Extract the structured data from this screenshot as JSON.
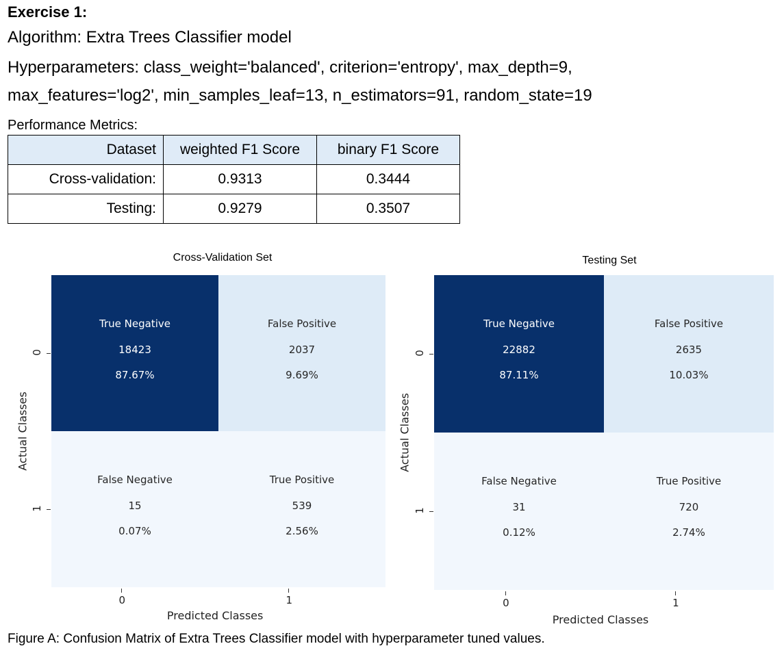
{
  "exercise_title": "Exercise 1:",
  "algorithm": "Algorithm: Extra Trees Classifier model",
  "hyperparameters_line1": "Hyperparameters: class_weight='balanced', criterion='entropy', max_depth=9,",
  "hyperparameters_line2": "max_features='log2', min_samples_leaf=13, n_estimators=91, random_state=19",
  "performance_label": "Performance Metrics:",
  "metrics_table": {
    "headers": [
      "Dataset",
      "weighted F1 Score",
      "binary F1 Score"
    ],
    "rows": [
      [
        "Cross-validation:",
        "0.9313",
        "0.3444"
      ],
      [
        "Testing:",
        "0.9279",
        "0.3507"
      ]
    ]
  },
  "colors": {
    "dark_cell": "#08306b",
    "light_cell": "#deebf7",
    "lightest_cell": "#f2f7fd",
    "table_header": "#dfebf7"
  },
  "chart_data": [
    {
      "type": "heatmap",
      "title": "Cross-Validation Set",
      "xlabel": "Predicted Classes",
      "ylabel": "Actual Classes",
      "x_tick_labels": [
        "0",
        "1"
      ],
      "y_tick_labels": [
        "0",
        "1"
      ],
      "cells": [
        [
          {
            "name": "True Negative",
            "count": "18423",
            "percent": "87.67%"
          },
          {
            "name": "False Positive",
            "count": "2037",
            "percent": "9.69%"
          }
        ],
        [
          {
            "name": "False Negative",
            "count": "15",
            "percent": "0.07%"
          },
          {
            "name": "True Positive",
            "count": "539",
            "percent": "2.56%"
          }
        ]
      ]
    },
    {
      "type": "heatmap",
      "title": "Testing Set",
      "xlabel": "Predicted Classes",
      "ylabel": "Actual Classes",
      "x_tick_labels": [
        "0",
        "1"
      ],
      "y_tick_labels": [
        "0",
        "1"
      ],
      "cells": [
        [
          {
            "name": "True Negative",
            "count": "22882",
            "percent": "87.11%"
          },
          {
            "name": "False Positive",
            "count": "2635",
            "percent": "10.03%"
          }
        ],
        [
          {
            "name": "False Negative",
            "count": "31",
            "percent": "0.12%"
          },
          {
            "name": "True Positive",
            "count": "720",
            "percent": "2.74%"
          }
        ]
      ]
    }
  ],
  "caption": "Figure A: Confusion Matrix of Extra Trees Classifier model with hyperparameter tuned values."
}
